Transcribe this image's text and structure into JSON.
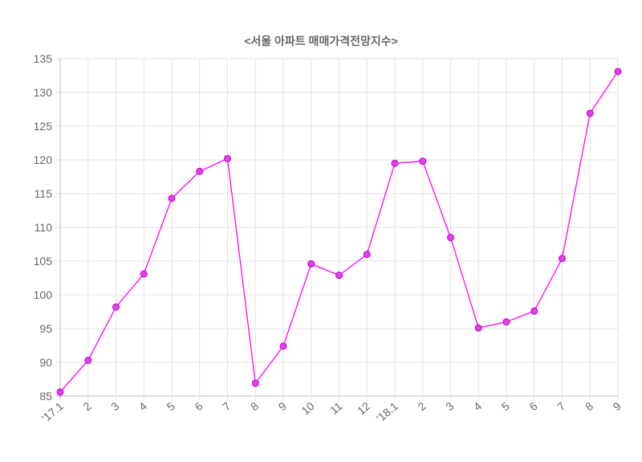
{
  "chart_data": {
    "type": "line",
    "title": "<서울 아파트 매매가격전망지수>",
    "xlabel": "",
    "ylabel": "",
    "categories": [
      "'17.1",
      "2",
      "3",
      "4",
      "5",
      "6",
      "7",
      "8",
      "9",
      "10",
      "11",
      "12",
      "'18.1",
      "2",
      "3",
      "4",
      "5",
      "6",
      "7",
      "8",
      "9"
    ],
    "series": [
      {
        "name": "서울 아파트 매매가격전망지수",
        "color": "#ff00ff",
        "values": [
          85.6,
          90.3,
          98.2,
          103.1,
          114.3,
          118.3,
          120.2,
          86.9,
          92.4,
          104.6,
          102.9,
          106.0,
          119.5,
          119.8,
          108.5,
          95.1,
          96.0,
          97.6,
          105.4,
          126.9,
          133.1
        ]
      }
    ],
    "ylim": [
      85,
      135
    ],
    "yticks": [
      85,
      90,
      95,
      100,
      105,
      110,
      115,
      120,
      125,
      130,
      135
    ],
    "grid": true,
    "legend": "none"
  }
}
